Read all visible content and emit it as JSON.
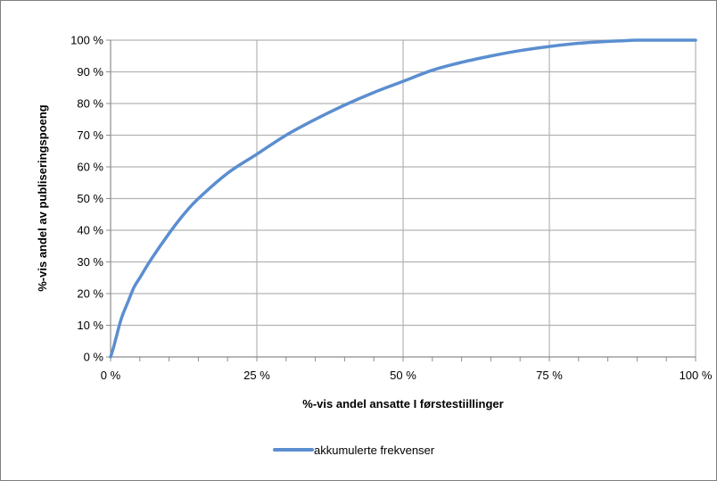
{
  "chart_data": {
    "type": "line",
    "title": "",
    "xlabel": "%-vis andel ansatte I førstestiillinger",
    "ylabel": "%-vis andel av publiseringspoeng",
    "xlim": [
      0,
      100
    ],
    "ylim": [
      0,
      100
    ],
    "x_ticks": [
      "0 %",
      "25 %",
      "50 %",
      "75 %",
      "100 %"
    ],
    "y_ticks": [
      "0 %",
      "10 %",
      "20 %",
      "30 %",
      "40 %",
      "50 %",
      "60 %",
      "70 %",
      "80 %",
      "90 %",
      "100 %"
    ],
    "grid": true,
    "legend_position": "bottom",
    "series": [
      {
        "name": "akkumulerte frekvenser",
        "color": "#5b8ed0",
        "x": [
          0,
          0.5,
          1,
          1.5,
          2,
          3,
          4,
          5,
          7,
          10,
          12.5,
          15,
          20,
          25,
          30,
          35,
          40,
          45,
          50,
          55,
          60,
          65,
          70,
          75,
          80,
          85,
          87.5,
          90,
          95,
          100
        ],
        "y": [
          0,
          3,
          6.5,
          10,
          13,
          17.5,
          22,
          25,
          31,
          39,
          45,
          50,
          58,
          64,
          70,
          75,
          79.5,
          83.5,
          87,
          90.5,
          93,
          95,
          96.7,
          98,
          99,
          99.6,
          99.8,
          100,
          100,
          100
        ]
      }
    ]
  }
}
